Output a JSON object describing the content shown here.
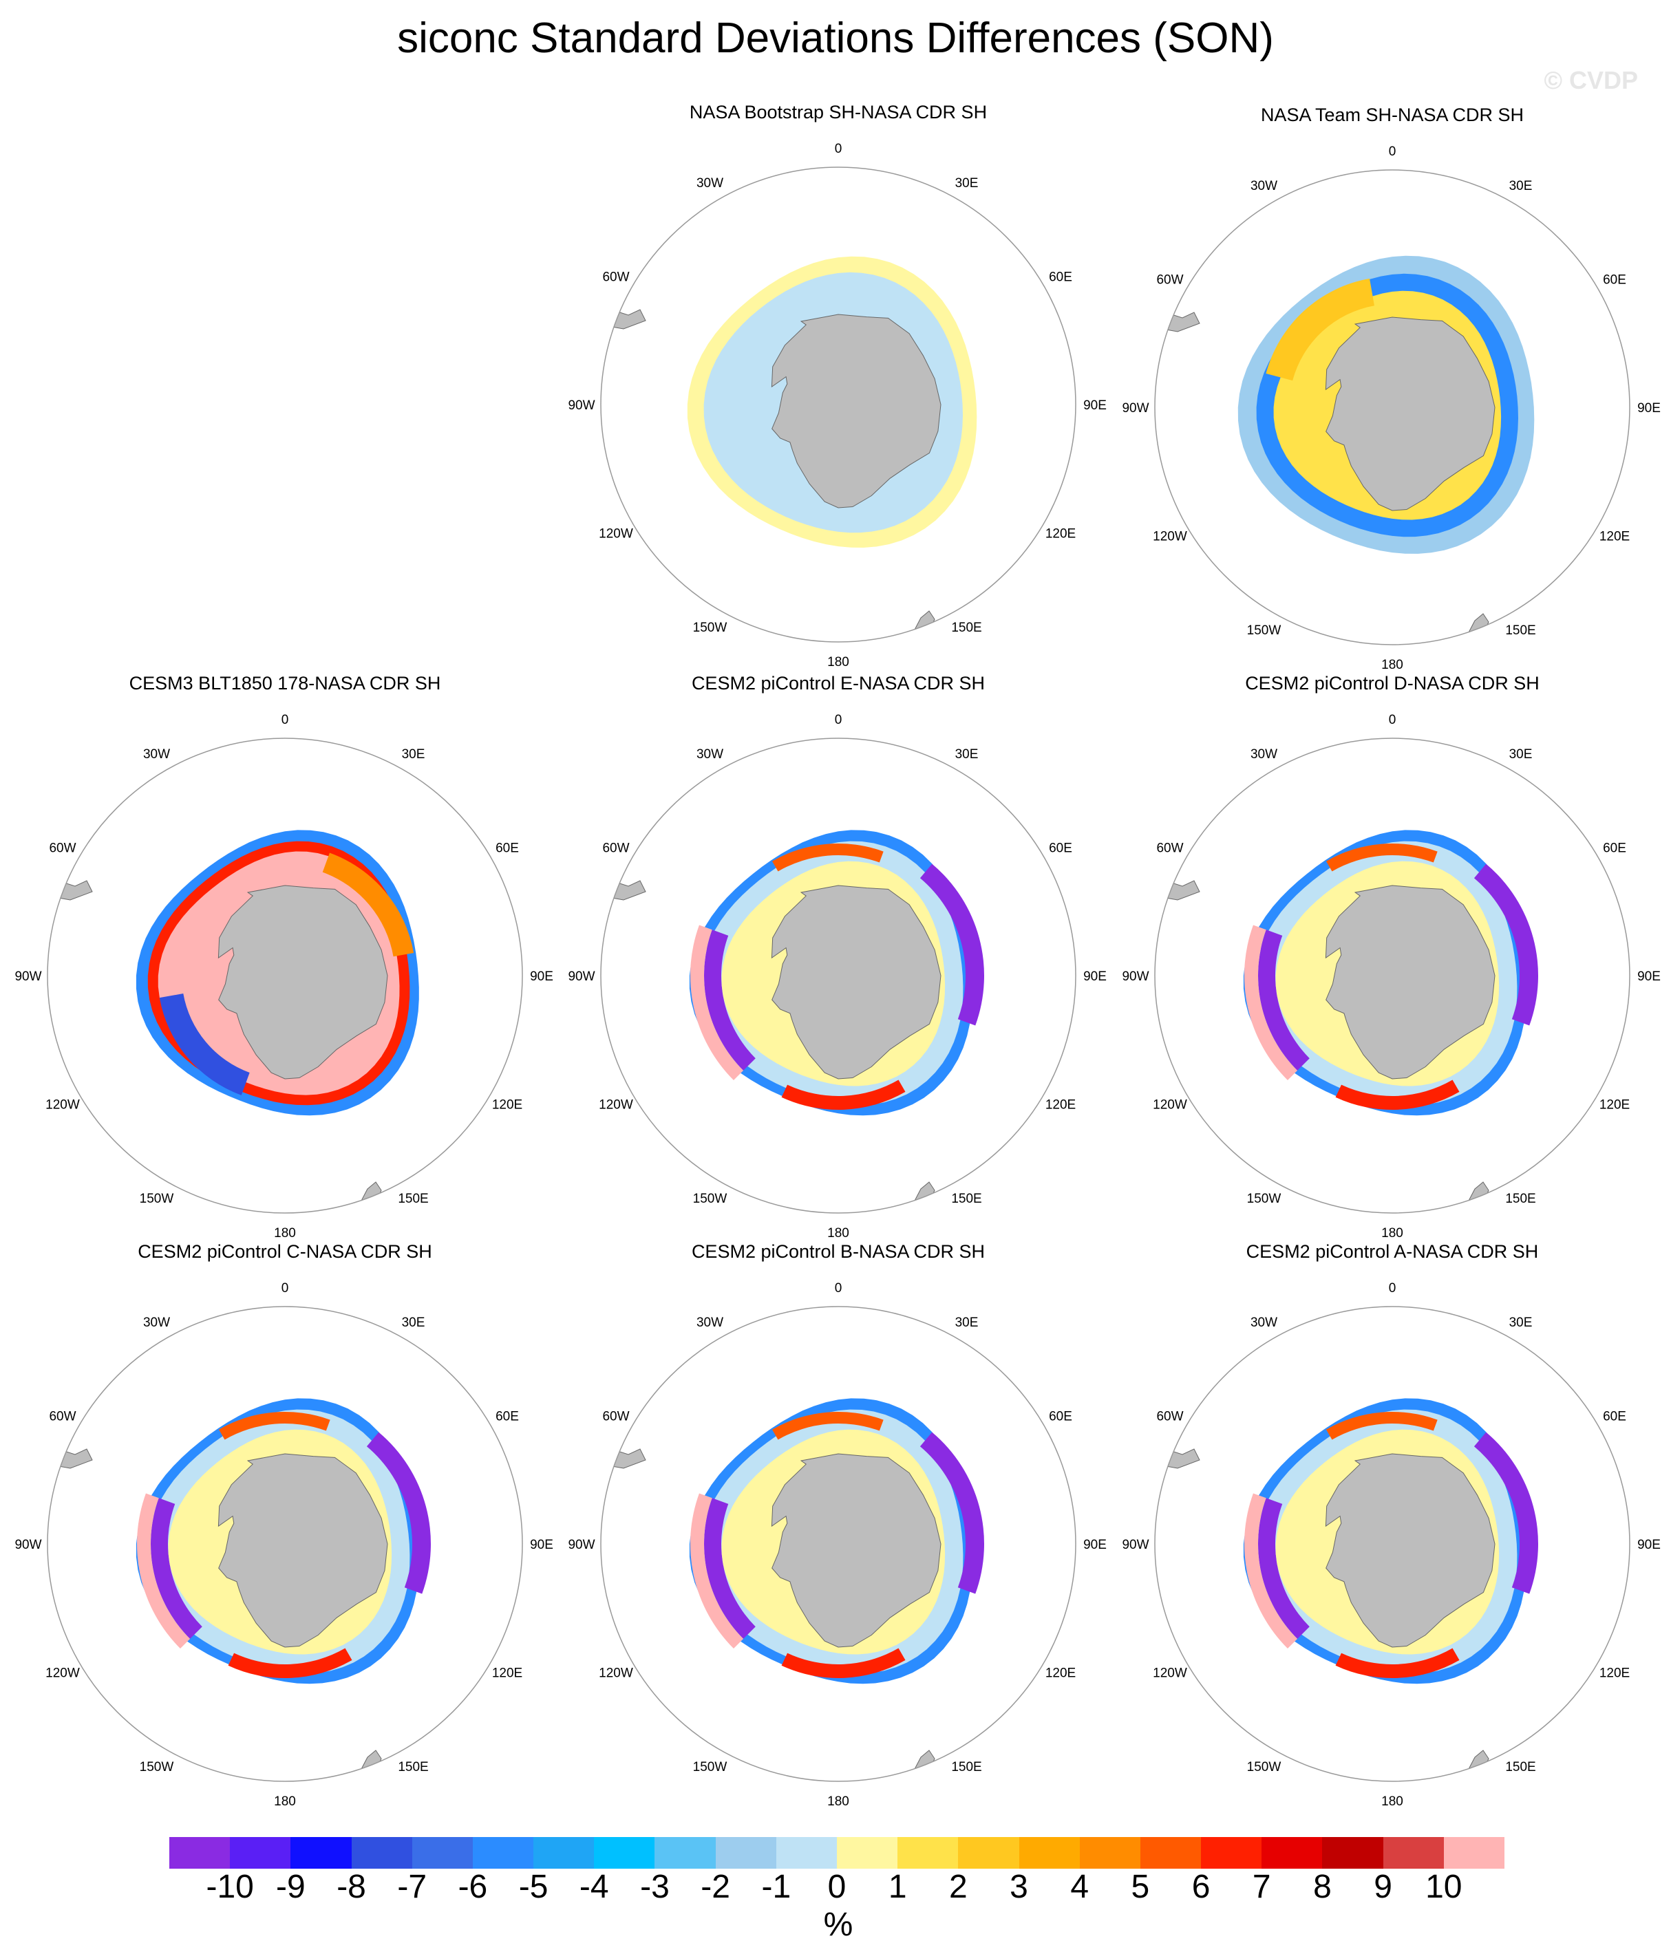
{
  "title": "siconc Standard Deviations Differences (SON)",
  "watermark": "© CVDP",
  "panels": [
    {
      "title": "NASA Bootstrap SH-NASA CDR SH",
      "pattern": "bootstrap"
    },
    {
      "title": "NASA Team SH-NASA CDR SH",
      "pattern": "team"
    },
    {
      "title": "CESM3 BLT1850 178-NASA CDR SH",
      "pattern": "cesm3"
    },
    {
      "title": "CESM2 piControl E-NASA CDR SH",
      "pattern": "cesm2"
    },
    {
      "title": "CESM2 piControl D-NASA CDR SH",
      "pattern": "cesm2"
    },
    {
      "title": "CESM2 piControl C-NASA CDR SH",
      "pattern": "cesm2"
    },
    {
      "title": "CESM2 piControl B-NASA CDR SH",
      "pattern": "cesm2"
    },
    {
      "title": "CESM2 piControl A-NASA CDR SH",
      "pattern": "cesm2"
    }
  ],
  "lon_labels": [
    "0",
    "30E",
    "60E",
    "90E",
    "120E",
    "150E",
    "180",
    "150W",
    "120W",
    "90W",
    "60W",
    "30W"
  ],
  "colorbar": {
    "labels": [
      "-10",
      "-9",
      "-8",
      "-7",
      "-6",
      "-5",
      "-4",
      "-3",
      "-2",
      "-1",
      "0",
      "1",
      "2",
      "3",
      "4",
      "5",
      "6",
      "7",
      "8",
      "9",
      "10"
    ],
    "colors": [
      "#8a2be2",
      "#5a1ff5",
      "#1010ff",
      "#3050e0",
      "#3a6ee8",
      "#2b8cff",
      "#1fa5f5",
      "#00c0ff",
      "#5ac3f5",
      "#9dcdee",
      "#bfe2f5",
      "#fff7a0",
      "#ffe24a",
      "#ffc820",
      "#ffaa00",
      "#ff8c00",
      "#ff5a00",
      "#ff2000",
      "#e60000",
      "#c00000",
      "#d94040",
      "#ffb4b4"
    ],
    "units": "%"
  }
}
